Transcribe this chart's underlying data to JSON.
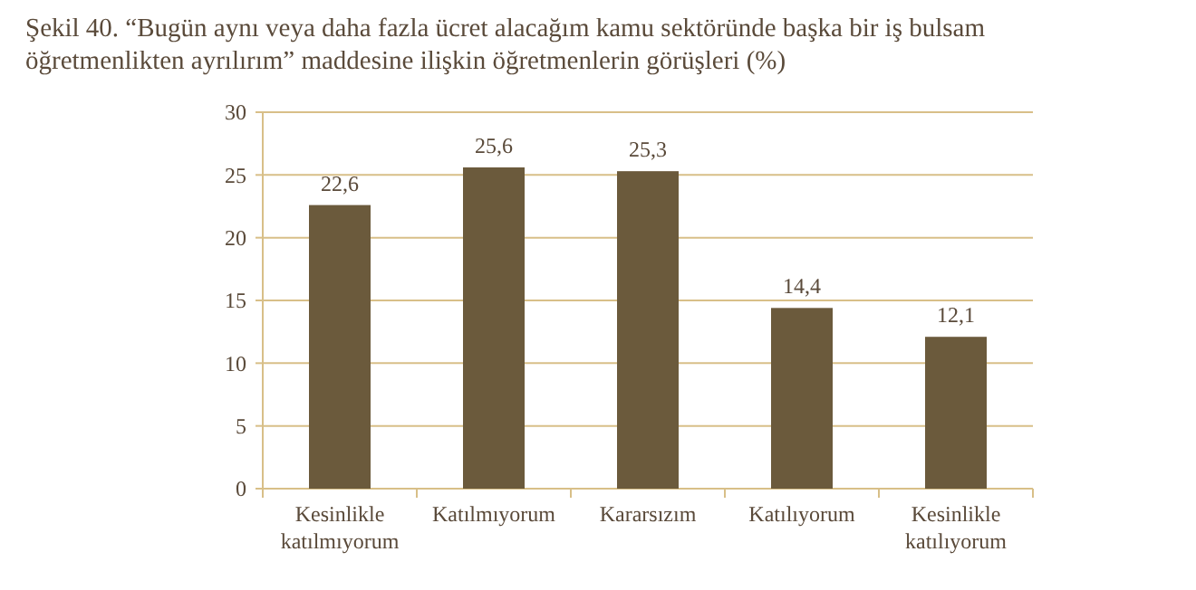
{
  "chart_data": {
    "type": "bar",
    "title": "Şekil 40. “Bugün aynı veya daha fazla ücret alacağım kamu sektöründe başka bir iş bulsam öğretmenlikten ayrılırım” maddesine ilişkin öğretmenlerin görüşleri (%)",
    "categories": [
      "Kesinlikle katılmıyorum",
      "Katılmıyorum",
      "Kararsızım",
      "Katılıyorum",
      "Kesinlikle katılıyorum"
    ],
    "values": [
      22.6,
      25.6,
      25.3,
      14.4,
      12.1
    ],
    "value_labels": [
      "22,6",
      "25,6",
      "25,3",
      "14,4",
      "12,1"
    ],
    "color": "#6b5a3c",
    "ylim": [
      0,
      30
    ],
    "yticks": [
      0,
      5,
      10,
      15,
      20,
      25,
      30
    ],
    "grid": "y"
  }
}
